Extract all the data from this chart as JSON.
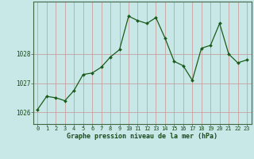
{
  "x": [
    0,
    1,
    2,
    3,
    4,
    5,
    6,
    7,
    8,
    9,
    10,
    11,
    12,
    13,
    14,
    15,
    16,
    17,
    18,
    19,
    20,
    21,
    22,
    23
  ],
  "y": [
    1026.1,
    1026.55,
    1026.5,
    1026.4,
    1026.75,
    1027.3,
    1027.35,
    1027.55,
    1027.9,
    1028.15,
    1029.3,
    1029.15,
    1029.05,
    1029.25,
    1028.55,
    1027.75,
    1027.6,
    1027.1,
    1028.2,
    1028.3,
    1029.05,
    1028.0,
    1027.7,
    1027.8
  ],
  "bg_color": "#c8e8e8",
  "grid_color_v": "#c8a0a0",
  "grid_color_h": "#c8a0a0",
  "line_color": "#1a5c1a",
  "marker_color": "#1a5c1a",
  "ylabel_ticks": [
    1026,
    1027,
    1028
  ],
  "xlabel_label": "Graphe pression niveau de la mer (hPa)",
  "ylim": [
    1025.6,
    1029.8
  ],
  "xlim": [
    -0.5,
    23.5
  ],
  "tick_label_color": "#1a4a1a",
  "xlabel_color": "#1a4a1a"
}
